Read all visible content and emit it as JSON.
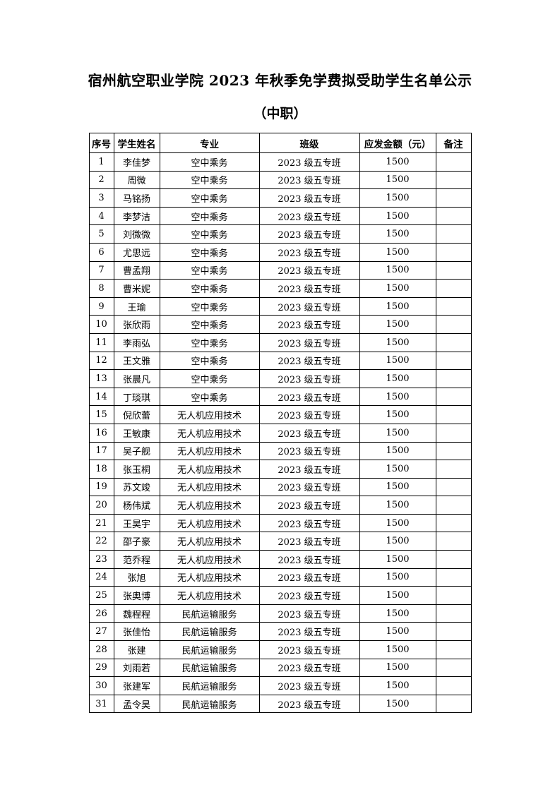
{
  "page": {
    "title": "宿州航空职业学院 2023 年秋季免学费拟受助学生名单公示",
    "subtitle": "（中职）"
  },
  "table": {
    "columns": [
      "序号",
      "学生姓名",
      "专业",
      "班级",
      "应发金额（元）",
      "备注"
    ],
    "rows": [
      [
        "1",
        "李佳梦",
        "空中乘务",
        "2023 级五专班",
        "1500",
        ""
      ],
      [
        "2",
        "周微",
        "空中乘务",
        "2023 级五专班",
        "1500",
        ""
      ],
      [
        "3",
        "马铭扬",
        "空中乘务",
        "2023 级五专班",
        "1500",
        ""
      ],
      [
        "4",
        "李梦洁",
        "空中乘务",
        "2023 级五专班",
        "1500",
        ""
      ],
      [
        "5",
        "刘微微",
        "空中乘务",
        "2023 级五专班",
        "1500",
        ""
      ],
      [
        "6",
        "尤思远",
        "空中乘务",
        "2023 级五专班",
        "1500",
        ""
      ],
      [
        "7",
        "曹孟翔",
        "空中乘务",
        "2023 级五专班",
        "1500",
        ""
      ],
      [
        "8",
        "曹米妮",
        "空中乘务",
        "2023 级五专班",
        "1500",
        ""
      ],
      [
        "9",
        "王瑜",
        "空中乘务",
        "2023 级五专班",
        "1500",
        ""
      ],
      [
        "10",
        "张欣雨",
        "空中乘务",
        "2023 级五专班",
        "1500",
        ""
      ],
      [
        "11",
        "李雨弘",
        "空中乘务",
        "2023 级五专班",
        "1500",
        ""
      ],
      [
        "12",
        "王文雅",
        "空中乘务",
        "2023 级五专班",
        "1500",
        ""
      ],
      [
        "13",
        "张晨凡",
        "空中乘务",
        "2023 级五专班",
        "1500",
        ""
      ],
      [
        "14",
        "丁琰琪",
        "空中乘务",
        "2023 级五专班",
        "1500",
        ""
      ],
      [
        "15",
        "倪欣蕾",
        "无人机应用技术",
        "2023 级五专班",
        "1500",
        ""
      ],
      [
        "16",
        "王敏康",
        "无人机应用技术",
        "2023 级五专班",
        "1500",
        ""
      ],
      [
        "17",
        "吴子舰",
        "无人机应用技术",
        "2023 级五专班",
        "1500",
        ""
      ],
      [
        "18",
        "张玉桐",
        "无人机应用技术",
        "2023 级五专班",
        "1500",
        ""
      ],
      [
        "19",
        "苏文竣",
        "无人机应用技术",
        "2023 级五专班",
        "1500",
        ""
      ],
      [
        "20",
        "杨伟斌",
        "无人机应用技术",
        "2023 级五专班",
        "1500",
        ""
      ],
      [
        "21",
        "王昊宇",
        "无人机应用技术",
        "2023 级五专班",
        "1500",
        ""
      ],
      [
        "22",
        "邵子豪",
        "无人机应用技术",
        "2023 级五专班",
        "1500",
        ""
      ],
      [
        "23",
        "范乔程",
        "无人机应用技术",
        "2023 级五专班",
        "1500",
        ""
      ],
      [
        "24",
        "张旭",
        "无人机应用技术",
        "2023 级五专班",
        "1500",
        ""
      ],
      [
        "25",
        "张奥博",
        "无人机应用技术",
        "2023 级五专班",
        "1500",
        ""
      ],
      [
        "26",
        "魏程程",
        "民航运输服务",
        "2023 级五专班",
        "1500",
        ""
      ],
      [
        "27",
        "张佳怡",
        "民航运输服务",
        "2023 级五专班",
        "1500",
        ""
      ],
      [
        "28",
        "张建",
        "民航运输服务",
        "2023 级五专班",
        "1500",
        ""
      ],
      [
        "29",
        "刘雨若",
        "民航运输服务",
        "2023 级五专班",
        "1500",
        ""
      ],
      [
        "30",
        "张建军",
        "民航运输服务",
        "2023 级五专班",
        "1500",
        ""
      ],
      [
        "31",
        "孟令昊",
        "民航运输服务",
        "2023 级五专班",
        "1500",
        ""
      ]
    ]
  }
}
